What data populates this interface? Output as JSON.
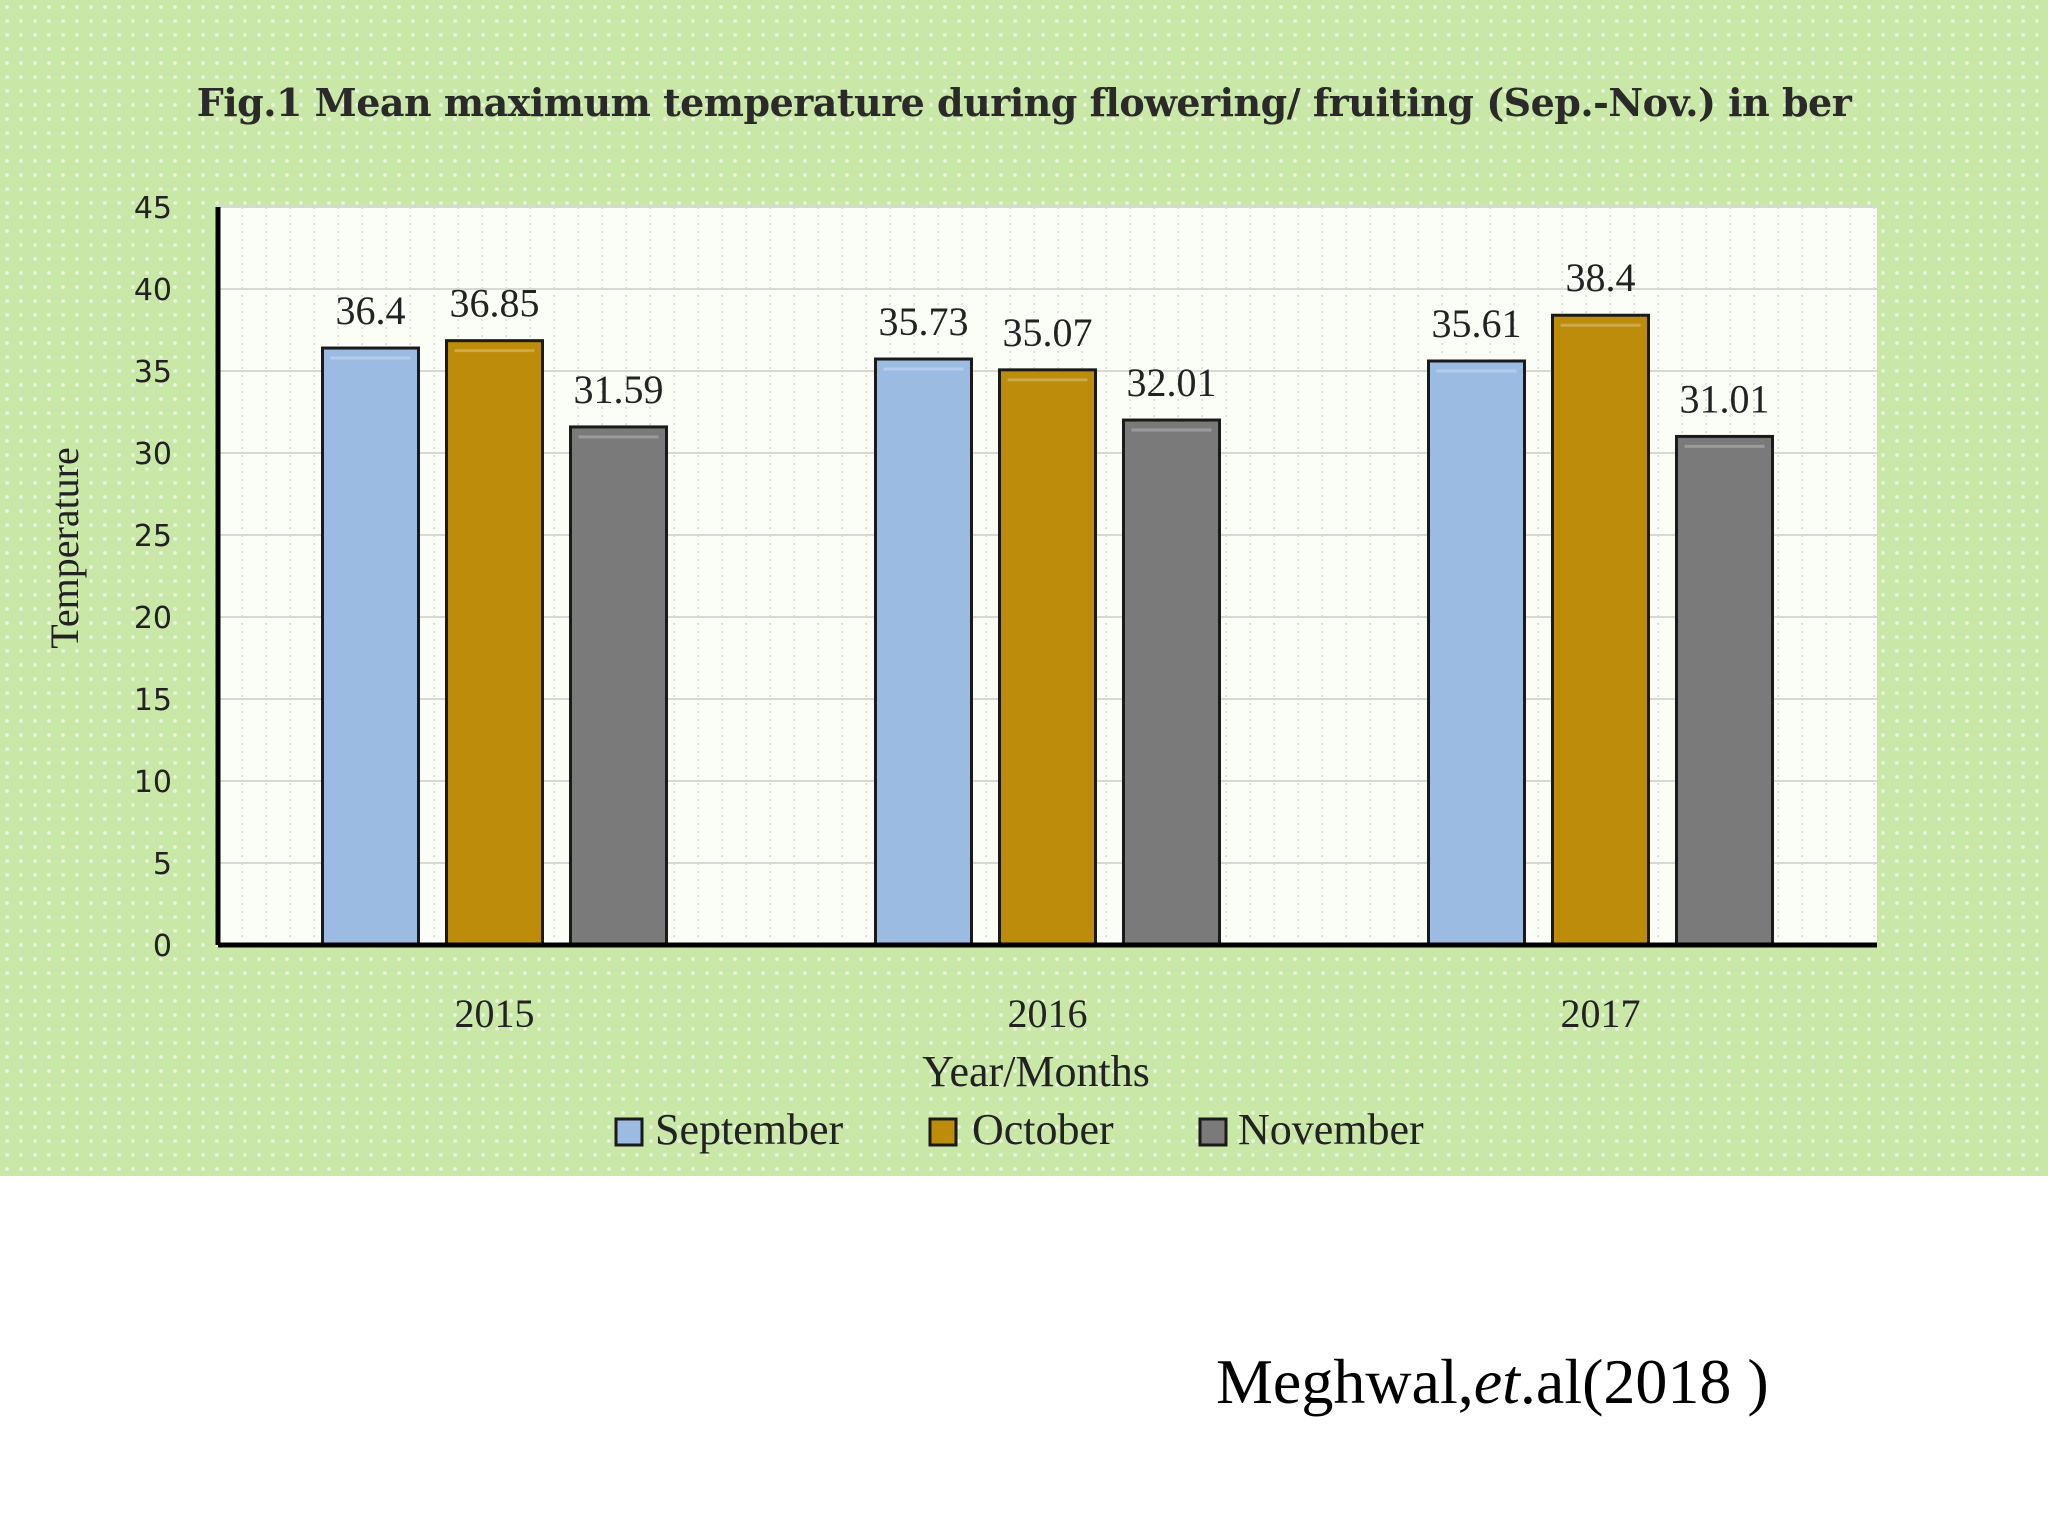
{
  "chart_data": {
    "type": "bar",
    "title": "Fig.1 Mean maximum temperature during flowering/ fruiting (Sep.-Nov.) in ber",
    "xlabel": "Year/Months",
    "ylabel": "Temperature",
    "categories": [
      "2015",
      "2016",
      "2017"
    ],
    "series": [
      {
        "name": "September",
        "color": "#9cbbe3",
        "values": [
          36.4,
          35.73,
          35.61
        ]
      },
      {
        "name": "October",
        "color": "#bc8c0a",
        "values": [
          36.85,
          35.07,
          38.4
        ]
      },
      {
        "name": "November",
        "color": "#7a7a7a",
        "values": [
          31.59,
          32.01,
          31.01
        ]
      }
    ],
    "data_labels": [
      [
        "36.4",
        "35.73",
        "35.61"
      ],
      [
        "36.85",
        "35.07",
        "38.4"
      ],
      [
        "31.59",
        "32.01",
        "31.01"
      ]
    ],
    "yticks": [
      "0",
      "5",
      "10",
      "15",
      "20",
      "25",
      "30",
      "35",
      "40",
      "45"
    ],
    "ylim": [
      0,
      45
    ],
    "grid": true,
    "legend_position": "bottom"
  },
  "citation": {
    "prefix": "Meghwal,",
    "italic": "et",
    "suffix": ".al(2018 )"
  }
}
